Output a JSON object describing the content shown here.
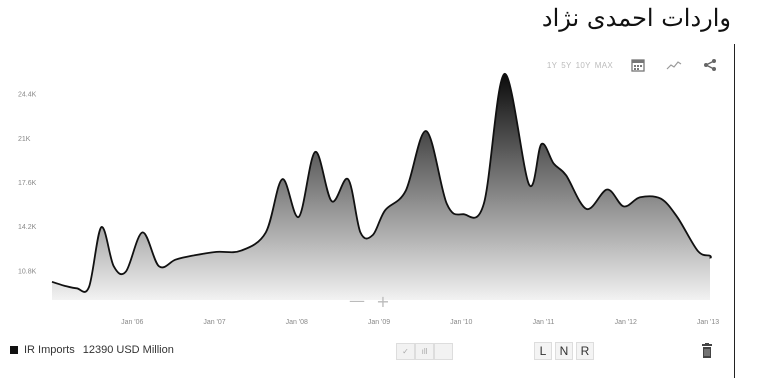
{
  "caption": "واردات احمدی نژاد",
  "toolbar": {
    "ranges": [
      "1Y",
      "5Y",
      "10Y",
      "MAX"
    ],
    "icons": [
      "calendar-icon",
      "line-chart-icon",
      "share-icon"
    ]
  },
  "zoom": {
    "minus": "—",
    "plus": "+"
  },
  "legend": {
    "label": "IR Imports",
    "value": "12390 USD Million",
    "color": "#111111"
  },
  "chart_type_buttons": [
    "✓",
    "ıll",
    ""
  ],
  "scale_buttons": [
    "L",
    "N",
    "R"
  ],
  "chart_data": {
    "type": "area",
    "title": "",
    "xlabel": "",
    "ylabel": "",
    "series": [
      {
        "name": "IR Imports",
        "x": [
          2005.0,
          2005.15,
          2005.3,
          2005.45,
          2005.6,
          2005.75,
          2005.9,
          2006.1,
          2006.3,
          2006.5,
          2006.7,
          2007.0,
          2007.3,
          2007.6,
          2007.8,
          2008.0,
          2008.2,
          2008.4,
          2008.6,
          2008.75,
          2008.9,
          2009.05,
          2009.3,
          2009.55,
          2009.8,
          2010.0,
          2010.25,
          2010.5,
          2010.8,
          2010.95,
          2011.1,
          2011.25,
          2011.5,
          2011.75,
          2011.95,
          2012.15,
          2012.4,
          2012.6,
          2012.85,
          2013.0,
          2013.2
        ],
        "values": [
          10000,
          9700,
          9500,
          9600,
          14200,
          11200,
          10800,
          13800,
          11200,
          11700,
          12000,
          12300,
          12400,
          13800,
          17900,
          15000,
          20000,
          16200,
          17900,
          13800,
          13600,
          15500,
          17000,
          21600,
          16000,
          15200,
          16000,
          26000,
          17500,
          20600,
          19100,
          18200,
          15600,
          17100,
          15800,
          16500,
          16400,
          15000,
          12390,
          12000,
          11800
        ]
      }
    ],
    "x_tick_labels": [
      "Jan '06",
      "Jan '07",
      "Jan '08",
      "Jan '09",
      "Jan '10",
      "Jan '11",
      "Jan '12",
      "Jan '13"
    ],
    "x_tick_values": [
      2006,
      2007,
      2008,
      2009,
      2010,
      2011,
      2012,
      2013
    ],
    "y_tick_labels": [
      "10.8K",
      "14.2K",
      "17.6K",
      "21K",
      "24.4K"
    ],
    "y_tick_values": [
      10800,
      14200,
      17600,
      21000,
      24400
    ],
    "xlim": [
      2005.0,
      2013.0
    ],
    "ylim": [
      8600,
      26300
    ],
    "grid": false,
    "legend_position": "bottom-left",
    "fill_gradient": [
      "#0b0b0b",
      "#f2f2f2"
    ]
  }
}
